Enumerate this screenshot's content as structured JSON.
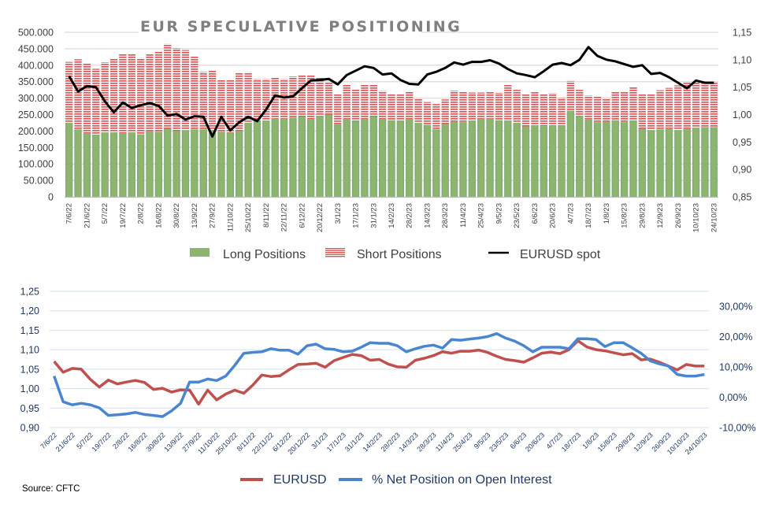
{
  "chart_data": [
    {
      "type": "bar",
      "stacked": true,
      "title": "EUR SPECULATIVE POSITIONING",
      "xlabel": "",
      "ylabel": "",
      "ylim": [
        0,
        500000
      ],
      "y_ticks": [
        "0",
        "50.000",
        "100.000",
        "150.000",
        "200.000",
        "250.000",
        "300.000",
        "350.000",
        "400.000",
        "450.000",
        "500.000"
      ],
      "y2lim": [
        0.85,
        1.15
      ],
      "y2_ticks": [
        "0,85",
        "0,90",
        "0,95",
        "1,00",
        "1,05",
        "1,10",
        "1,15"
      ],
      "grid": true,
      "legend_position": "bottom",
      "x_tick_labels": [
        "7/6/22",
        "21/6/22",
        "5/7/22",
        "19/7/22",
        "2/8/22",
        "16/8/22",
        "30/8/22",
        "13/9/22",
        "27/9/22",
        "11/10/22",
        "25/10/22",
        "8/11/22",
        "22/11/22",
        "6/12/22",
        "20/12/22",
        "3/1/23",
        "17/1/23",
        "31/1/23",
        "14/2/23",
        "28/2/23",
        "14/3/23",
        "28/3/23",
        "11/4/23",
        "25/4/23",
        "9/5/23",
        "23/5/23",
        "6/6/23",
        "20/6/23",
        "4/7/23",
        "18/7/23",
        "1/8/23",
        "15/8/23",
        "29/8/23",
        "12/9/23",
        "26/9/23",
        "10/10/23",
        "24/10/23"
      ],
      "series": [
        {
          "name": "Long Positions",
          "kind": "bar",
          "color": "#8db56b",
          "values": [
            225000,
            205000,
            193000,
            188000,
            196000,
            196000,
            193000,
            196000,
            190000,
            199000,
            198000,
            207000,
            200000,
            203000,
            205000,
            205000,
            203000,
            198000,
            195000,
            200000,
            225000,
            230000,
            232000,
            238000,
            238000,
            241000,
            244000,
            235000,
            245000,
            250000,
            220000,
            237000,
            230000,
            237000,
            244000,
            236000,
            233000,
            231000,
            235000,
            225000,
            219000,
            205000,
            221000,
            228000,
            227000,
            232000,
            237000,
            238000,
            233000,
            231000,
            225000,
            214000,
            218000,
            215000,
            216000,
            216000,
            262000,
            245000,
            235000,
            227000,
            228000,
            233000,
            227000,
            231000,
            207000,
            203000,
            205000,
            206000,
            203000,
            208000,
            210000,
            212000,
            212000
          ]
        },
        {
          "name": "Short Positions",
          "kind": "bar",
          "color": "#d9585a",
          "values": [
            185000,
            213000,
            212000,
            201000,
            213000,
            223000,
            240000,
            239000,
            232000,
            234000,
            245000,
            258000,
            252000,
            243000,
            222000,
            175000,
            180000,
            157000,
            160000,
            178000,
            154000,
            128000,
            126000,
            125000,
            120000,
            125000,
            125000,
            135000,
            118000,
            100000,
            92000,
            104000,
            98000,
            105000,
            98000,
            86000,
            78000,
            80000,
            85000,
            75000,
            69000,
            77000,
            75000,
            95000,
            94000,
            85000,
            80000,
            81000,
            83000,
            110000,
            100000,
            98000,
            100000,
            96000,
            99000,
            85000,
            90000,
            80000,
            73000,
            78000,
            72000,
            86000,
            93000,
            103000,
            106000,
            108000,
            119000,
            125000,
            136000,
            140000,
            138000,
            135000,
            135000
          ]
        },
        {
          "name": "EURUSD spot",
          "kind": "line",
          "color": "#000000",
          "axis": "right",
          "values": [
            1.07,
            1.042,
            1.052,
            1.05,
            1.024,
            1.004,
            1.022,
            1.012,
            1.017,
            1.021,
            1.016,
            0.998,
            1.001,
            0.991,
            0.997,
            0.996,
            0.96,
            0.996,
            0.971,
            0.986,
            0.996,
            0.988,
            1.009,
            1.035,
            1.031,
            1.033,
            1.048,
            1.062,
            1.063,
            1.065,
            1.055,
            1.072,
            1.08,
            1.088,
            1.085,
            1.073,
            1.075,
            1.063,
            1.056,
            1.055,
            1.073,
            1.078,
            1.085,
            1.095,
            1.091,
            1.096,
            1.096,
            1.099,
            1.093,
            1.083,
            1.075,
            1.072,
            1.068,
            1.079,
            1.091,
            1.094,
            1.09,
            1.1,
            1.123,
            1.107,
            1.1,
            1.097,
            1.092,
            1.087,
            1.09,
            1.074,
            1.076,
            1.068,
            1.058,
            1.048,
            1.062,
            1.058,
            1.058
          ]
        }
      ]
    },
    {
      "type": "line",
      "title": "",
      "xlabel": "",
      "ylabel": "",
      "ylim": [
        0.9,
        1.25
      ],
      "y_ticks": [
        "0,90",
        "0,95",
        "1,00",
        "1,05",
        "1,10",
        "1,15",
        "1,20",
        "1,25"
      ],
      "y2lim": [
        -0.1,
        0.35
      ],
      "y2_ticks": [
        "-10,00%",
        "0,00%",
        "10,00%",
        "20,00%",
        "30,00%"
      ],
      "grid": true,
      "legend_position": "bottom",
      "x_tick_labels": [
        "7/6/22",
        "21/6/22",
        "5/7/22",
        "19/7/22",
        "2/8/22",
        "16/8/22",
        "30/8/22",
        "13/9/22",
        "27/9/22",
        "11/10/22",
        "25/10/22",
        "8/11/22",
        "22/11/22",
        "6/12/22",
        "20/12/22",
        "3/1/23",
        "17/1/23",
        "31/1/23",
        "14/2/23",
        "28/2/23",
        "14/3/23",
        "28/3/23",
        "11/4/23",
        "25/4/23",
        "9/5/23",
        "23/5/23",
        "6/6/23",
        "20/6/23",
        "4/7/23",
        "18/7/23",
        "1/8/23",
        "15/8/23",
        "29/8/23",
        "12/9/23",
        "26/9/23",
        "10/10/23",
        "24/10/23"
      ],
      "series": [
        {
          "name": "EURUSD",
          "color": "#c0504d",
          "axis": "left",
          "values": [
            1.07,
            1.042,
            1.052,
            1.05,
            1.024,
            1.004,
            1.022,
            1.012,
            1.017,
            1.021,
            1.016,
            0.998,
            1.001,
            0.991,
            0.997,
            0.996,
            0.96,
            0.996,
            0.971,
            0.986,
            0.996,
            0.988,
            1.009,
            1.035,
            1.031,
            1.033,
            1.048,
            1.062,
            1.063,
            1.065,
            1.055,
            1.072,
            1.08,
            1.088,
            1.085,
            1.073,
            1.075,
            1.063,
            1.056,
            1.055,
            1.073,
            1.078,
            1.085,
            1.095,
            1.091,
            1.096,
            1.096,
            1.099,
            1.093,
            1.083,
            1.075,
            1.072,
            1.068,
            1.079,
            1.091,
            1.094,
            1.09,
            1.1,
            1.123,
            1.107,
            1.1,
            1.097,
            1.092,
            1.087,
            1.09,
            1.074,
            1.076,
            1.068,
            1.058,
            1.048,
            1.062,
            1.058,
            1.058
          ]
        },
        {
          "name": "% Net Position on Open Interest",
          "color": "#4a86d0",
          "axis": "right",
          "values": [
            0.07,
            -0.015,
            -0.025,
            -0.02,
            -0.025,
            -0.035,
            -0.06,
            -0.058,
            -0.055,
            -0.05,
            -0.057,
            -0.06,
            -0.064,
            -0.045,
            -0.02,
            0.05,
            0.05,
            0.06,
            0.055,
            0.07,
            0.105,
            0.145,
            0.148,
            0.15,
            0.16,
            0.155,
            0.155,
            0.142,
            0.17,
            0.175,
            0.16,
            0.158,
            0.15,
            0.152,
            0.165,
            0.18,
            0.178,
            0.178,
            0.17,
            0.15,
            0.16,
            0.168,
            0.172,
            0.162,
            0.19,
            0.188,
            0.192,
            0.195,
            0.2,
            0.21,
            0.195,
            0.185,
            0.17,
            0.15,
            0.165,
            0.165,
            0.165,
            0.16,
            0.193,
            0.193,
            0.19,
            0.167,
            0.18,
            0.18,
            0.163,
            0.145,
            0.12,
            0.11,
            0.103,
            0.075,
            0.07,
            0.07,
            0.075
          ]
        }
      ]
    }
  ],
  "top_chart": {
    "title": "EUR SPECULATIVE POSITIONING",
    "legend": [
      "Long Positions",
      "Short Positions",
      "EURUSD spot"
    ]
  },
  "bottom_chart": {
    "legend": [
      "EURUSD",
      "% Net Position on Open Interest"
    ]
  },
  "source": "Source: CFTC"
}
